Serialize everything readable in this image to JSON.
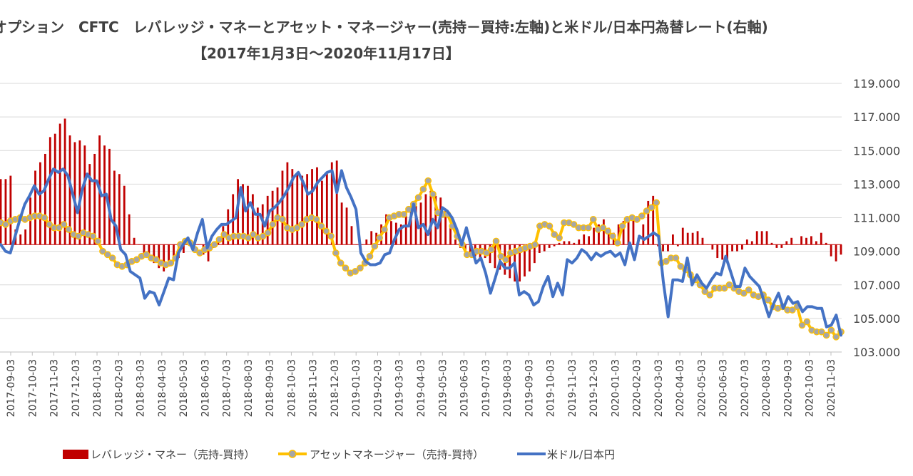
{
  "chart_data": {
    "type": "bar+line",
    "title": "オプション　CFTC　レバレッジ・マネーとアセット・マネージャー(売持－買持:左軸)と米ドル/日本円為替レート(右軸)",
    "subtitle": "【2017年1月3日～2020年11月17日】",
    "right_axis": {
      "min": 103,
      "max": 119,
      "step": 2,
      "tick_labels": [
        "119.000",
        "117.000",
        "115.000",
        "113.000",
        "111.000",
        "109.000",
        "107.000",
        "105.000",
        "103.000"
      ]
    },
    "x_tick_labels": [
      "2017-09-03",
      "2017-10-03",
      "2017-11-03",
      "2017-12-03",
      "2018-01-03",
      "2018-02-03",
      "2018-03-03",
      "2018-04-03",
      "2018-05-03",
      "2018-06-03",
      "2018-07-03",
      "2018-08-03",
      "2018-09-03",
      "2018-10-03",
      "2018-11-03",
      "2018-12-03",
      "2019-01-03",
      "2019-02-03",
      "2019-03-03",
      "2019-04-03",
      "2019-05-03",
      "2019-06-03",
      "2019-07-03",
      "2019-08-03",
      "2019-09-03",
      "2019-10-03",
      "2019-11-03",
      "2019-12-03",
      "2020-01-03",
      "2020-02-03",
      "2020-03-03",
      "2020-04-03",
      "2020-05-03",
      "2020-06-03",
      "2020-07-03",
      "2020-08-03",
      "2020-09-03",
      "2020-10-03",
      "2020-11-03"
    ],
    "bar_zero_level": 109.4,
    "series": [
      {
        "name": "レバレッジ・マネー（売持-買持）",
        "kind": "bar",
        "color": "#C00000",
        "values_in_right_axis_units": [
          113.3,
          113.3,
          113.5,
          110.3,
          110.0,
          110.3,
          112.2,
          113.8,
          114.3,
          114.8,
          115.8,
          116.0,
          116.6,
          116.9,
          115.9,
          115.5,
          115.6,
          115.3,
          114.2,
          114.8,
          115.9,
          115.3,
          115.1,
          113.8,
          113.6,
          112.9,
          111.2,
          109.8,
          109.4,
          108.8,
          108.5,
          108.3,
          108.0,
          107.8,
          108.1,
          108.4,
          108.6,
          108.9,
          109.4,
          109.3,
          109.4,
          108.8,
          108.4,
          109.2,
          109.7,
          110.5,
          111.5,
          112.4,
          113.3,
          113.0,
          112.9,
          112.4,
          111.6,
          111.8,
          112.3,
          112.6,
          112.8,
          113.8,
          114.3,
          113.9,
          113.6,
          113.5,
          113.6,
          113.9,
          114.0,
          113.2,
          113.7,
          114.3,
          114.4,
          111.9,
          111.6,
          110.5,
          109.4,
          109.4,
          109.7,
          110.2,
          110.1,
          110.6,
          111.2,
          110.8,
          110.7,
          110.6,
          111.3,
          111.5,
          111.7,
          111.9,
          112.4,
          112.6,
          112.3,
          112.2,
          111.4,
          110.6,
          109.7,
          109.2,
          109.0,
          108.9,
          108.7,
          108.5,
          108.6,
          108.3,
          108.0,
          107.9,
          107.6,
          107.4,
          107.2,
          107.2,
          107.5,
          107.8,
          108.3,
          108.9,
          109.0,
          109.2,
          109.3,
          109.5,
          109.6,
          109.6,
          109.5,
          109.7,
          110.0,
          109.9,
          110.4,
          110.6,
          110.9,
          110.4,
          110.1,
          110.6,
          110.8,
          111.0,
          110.9,
          109.8,
          110.6,
          112.0,
          112.3,
          109.3,
          109.0,
          109.0,
          110.0,
          109.3,
          110.4,
          110.1,
          110.1,
          110.2,
          109.8,
          109.4,
          109.1,
          108.6,
          108.5,
          108.4,
          109.0,
          109.0,
          109.1,
          109.7,
          109.6,
          110.2,
          110.2,
          110.2,
          109.5,
          109.2,
          109.2,
          109.6,
          109.8,
          109.4,
          109.9,
          109.8,
          109.9,
          109.6,
          110.1,
          109.5,
          108.7,
          108.4,
          108.8
        ]
      },
      {
        "name": "アセットマネージャー（売持-買持）",
        "kind": "line",
        "color": "#FFC000",
        "marker_color": "#A6A6A6",
        "values": [
          110.7,
          110.6,
          110.8,
          110.9,
          111.0,
          110.9,
          111.0,
          111.1,
          111.1,
          111.0,
          110.6,
          110.4,
          110.4,
          110.6,
          110.3,
          110.0,
          109.9,
          110.1,
          110.0,
          109.9,
          109.6,
          109.0,
          108.8,
          108.6,
          108.2,
          108.1,
          108.2,
          108.4,
          108.5,
          108.7,
          108.8,
          108.6,
          108.5,
          108.3,
          108.2,
          108.3,
          108.6,
          109.4,
          109.6,
          109.5,
          109.1,
          108.9,
          109.1,
          109.2,
          109.4,
          109.7,
          110.0,
          109.8,
          109.9,
          109.9,
          109.9,
          109.8,
          110.0,
          109.8,
          109.9,
          110.1,
          110.6,
          111.0,
          110.9,
          110.4,
          110.3,
          110.4,
          110.6,
          110.9,
          111.0,
          110.9,
          110.5,
          110.2,
          109.9,
          108.9,
          108.3,
          108.0,
          107.7,
          107.8,
          108.0,
          108.3,
          108.7,
          109.3,
          109.8,
          110.3,
          111.0,
          111.1,
          111.2,
          111.2,
          111.5,
          111.8,
          112.2,
          112.7,
          113.2,
          112.4,
          111.3,
          111.2,
          111.2,
          110.5,
          109.9,
          109.4,
          108.8,
          108.8,
          109.0,
          109.0,
          108.9,
          109.1,
          109.6,
          108.7,
          108.5,
          108.9,
          109.0,
          109.1,
          109.2,
          109.3,
          109.4,
          110.5,
          110.6,
          110.5,
          110.0,
          109.8,
          110.7,
          110.7,
          110.6,
          110.4,
          110.4,
          110.4,
          110.9,
          110.3,
          110.4,
          110.2,
          109.9,
          109.5,
          110.5,
          110.9,
          111.0,
          110.9,
          111.1,
          111.4,
          111.6,
          111.9,
          108.3,
          108.4,
          108.6,
          108.6,
          108.1,
          107.9,
          107.6,
          107.3,
          107.0,
          106.6,
          106.4,
          106.8,
          106.8,
          106.8,
          107.0,
          106.8,
          106.6,
          106.5,
          106.7,
          106.4,
          106.3,
          106.4,
          106.1,
          105.7,
          105.6,
          105.7,
          105.5,
          105.5,
          105.7,
          104.6,
          104.8,
          104.3,
          104.2,
          104.2,
          104.0,
          104.3,
          103.9,
          104.2
        ]
      },
      {
        "name": "米ドル/日本円",
        "kind": "line",
        "color": "#4472C4",
        "values": [
          109.4,
          109.0,
          108.9,
          109.9,
          110.9,
          111.8,
          112.3,
          112.9,
          112.4,
          112.6,
          113.3,
          113.9,
          113.7,
          113.9,
          113.5,
          112.4,
          111.3,
          112.7,
          113.6,
          113.2,
          113.2,
          112.3,
          112.4,
          110.9,
          110.5,
          109.1,
          108.8,
          107.8,
          107.6,
          107.4,
          106.2,
          106.6,
          106.5,
          105.8,
          106.6,
          107.4,
          107.3,
          108.9,
          109.4,
          109.8,
          109.1,
          110.1,
          110.9,
          109.2,
          109.9,
          110.3,
          110.6,
          110.6,
          110.8,
          111.0,
          112.8,
          111.4,
          111.9,
          111.2,
          111.2,
          110.5,
          111.4,
          111.6,
          111.9,
          112.3,
          112.8,
          113.4,
          113.7,
          113.1,
          112.4,
          112.6,
          113.1,
          113.4,
          113.7,
          113.8,
          112.5,
          113.8,
          112.8,
          112.2,
          111.5,
          108.9,
          108.4,
          108.2,
          108.2,
          108.3,
          108.8,
          108.9,
          109.7,
          110.3,
          110.5,
          110.5,
          111.8,
          110.4,
          110.6,
          110.0,
          110.9,
          110.4,
          111.6,
          111.4,
          111.0,
          110.3,
          109.4,
          110.4,
          109.3,
          108.3,
          108.6,
          107.7,
          106.5,
          107.4,
          108.4,
          108.0,
          108.0,
          108.3,
          106.4,
          106.6,
          106.4,
          105.8,
          106.0,
          106.9,
          107.5,
          106.3,
          107.1,
          106.4,
          108.5,
          108.3,
          108.6,
          109.1,
          108.9,
          108.5,
          108.9,
          108.7,
          108.9,
          109.0,
          108.7,
          108.9,
          108.2,
          109.5,
          108.5,
          109.9,
          109.7,
          109.9,
          110.1,
          109.9,
          107.2,
          105.1,
          107.3,
          107.3,
          107.2,
          108.6,
          107.0,
          107.6,
          107.1,
          106.8,
          107.3,
          107.7,
          107.6,
          108.7,
          107.8,
          106.9,
          106.9,
          108.0,
          107.5,
          107.2,
          106.9,
          106.0,
          105.1,
          105.9,
          106.5,
          105.6,
          106.3,
          105.9,
          106.0,
          105.4,
          105.7,
          105.7,
          105.6,
          105.6,
          104.5,
          104.6,
          105.2,
          104.0
        ]
      }
    ]
  }
}
